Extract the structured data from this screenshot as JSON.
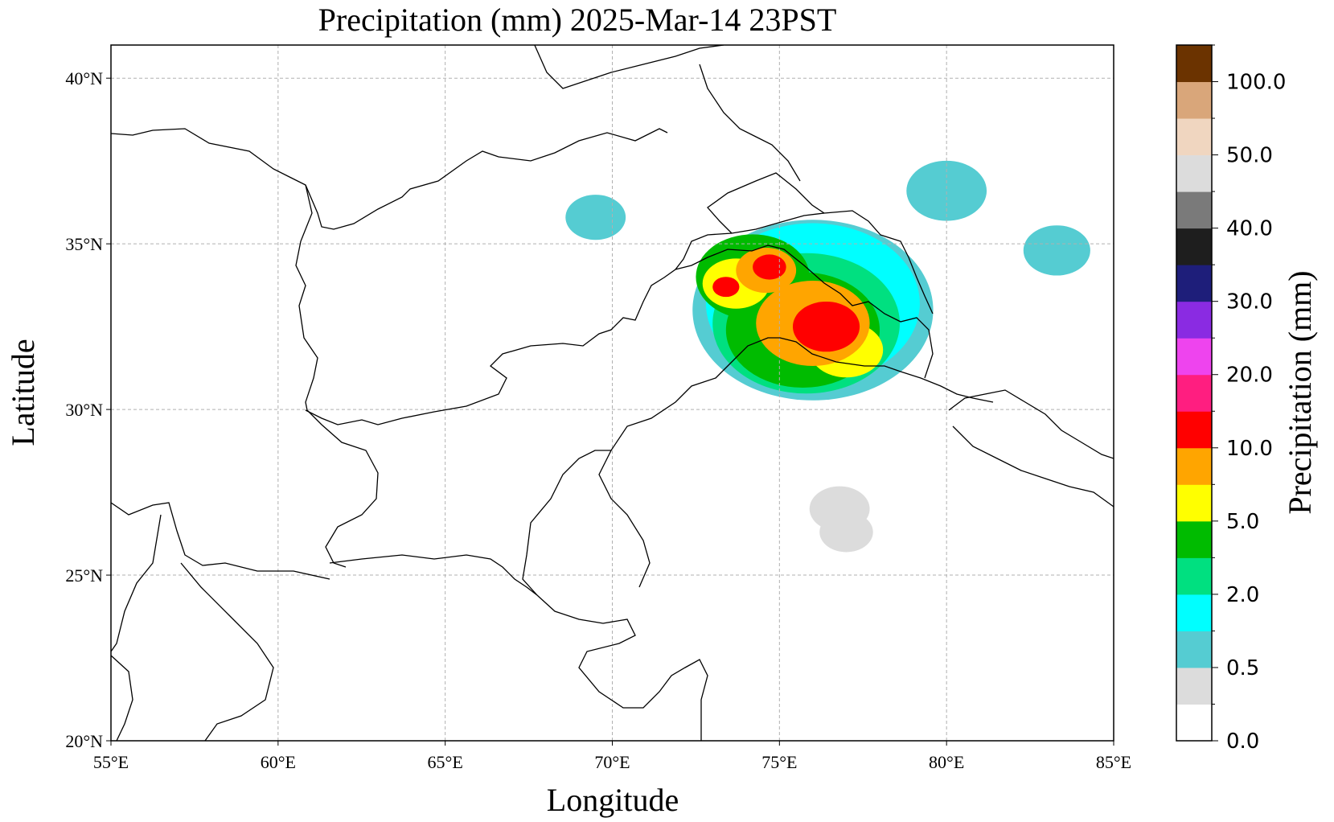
{
  "title": "Precipitation (mm)  2025-Mar-14 23PST",
  "x_label": "Longitude",
  "y_label": "Latitude",
  "x_ticks": [
    "55°E",
    "60°E",
    "65°E",
    "70°E",
    "75°E",
    "80°E",
    "85°E"
  ],
  "y_ticks": [
    "20°N",
    "25°N",
    "30°N",
    "35°N",
    "40°N"
  ],
  "extent": {
    "lon": [
      55,
      85
    ],
    "lat": [
      20,
      41
    ]
  },
  "grid": true,
  "colorbar": {
    "label": "Precipitation (mm)",
    "tick_labels": [
      "0.0",
      "0.5",
      "2.0",
      "5.0",
      "10.0",
      "20.0",
      "30.0",
      "40.0",
      "50.0",
      "100.0"
    ],
    "colors": [
      "#ffffff",
      "#dcdcdc",
      "#55ccd2",
      "#00ffff",
      "#00e080",
      "#00bb00",
      "#ffff00",
      "#ffa500",
      "#ff0000",
      "#ff1e80",
      "#ee44ee",
      "#8a2be2",
      "#1e1e7a",
      "#1e1e1e",
      "#7a7a7a",
      "#dcdcdc",
      "#f0d6c0",
      "#d9a67a",
      "#6b3300"
    ]
  },
  "precip_cells": [
    {
      "lon": 76.4,
      "lat": 32.5,
      "r": 1.0,
      "level": "#ff0000"
    },
    {
      "lon": 74.7,
      "lat": 34.3,
      "r": 0.5,
      "level": "#ff0000"
    },
    {
      "lon": 73.4,
      "lat": 33.7,
      "r": 0.4,
      "level": "#ff0000"
    },
    {
      "lon": 76.0,
      "lat": 32.6,
      "r": 1.7,
      "level": "#ffa500"
    },
    {
      "lon": 74.6,
      "lat": 34.2,
      "r": 0.9,
      "level": "#ffa500"
    },
    {
      "lon": 77.0,
      "lat": 31.8,
      "r": 1.1,
      "level": "#ffff00"
    },
    {
      "lon": 73.7,
      "lat": 33.8,
      "r": 1.0,
      "level": "#ffff00"
    },
    {
      "lon": 75.7,
      "lat": 32.4,
      "r": 2.3,
      "level": "#00bb00"
    },
    {
      "lon": 74.2,
      "lat": 34.0,
      "r": 1.7,
      "level": "#00bb00"
    },
    {
      "lon": 75.8,
      "lat": 32.6,
      "r": 2.8,
      "level": "#00e080"
    },
    {
      "lon": 76.0,
      "lat": 33.2,
      "r": 3.2,
      "level": "#00ffff"
    },
    {
      "lon": 76.0,
      "lat": 33.0,
      "r": 3.6,
      "level": "#55ccd2"
    },
    {
      "lon": 80.0,
      "lat": 36.6,
      "r": 1.2,
      "level": "#55ccd2"
    },
    {
      "lon": 83.3,
      "lat": 34.8,
      "r": 1.0,
      "level": "#55ccd2"
    },
    {
      "lon": 69.5,
      "lat": 35.8,
      "r": 0.9,
      "level": "#55ccd2"
    },
    {
      "lon": 76.8,
      "lat": 27.0,
      "r": 0.9,
      "level": "#dcdcdc"
    },
    {
      "lon": 77.0,
      "lat": 26.3,
      "r": 0.8,
      "level": "#dcdcdc"
    }
  ]
}
